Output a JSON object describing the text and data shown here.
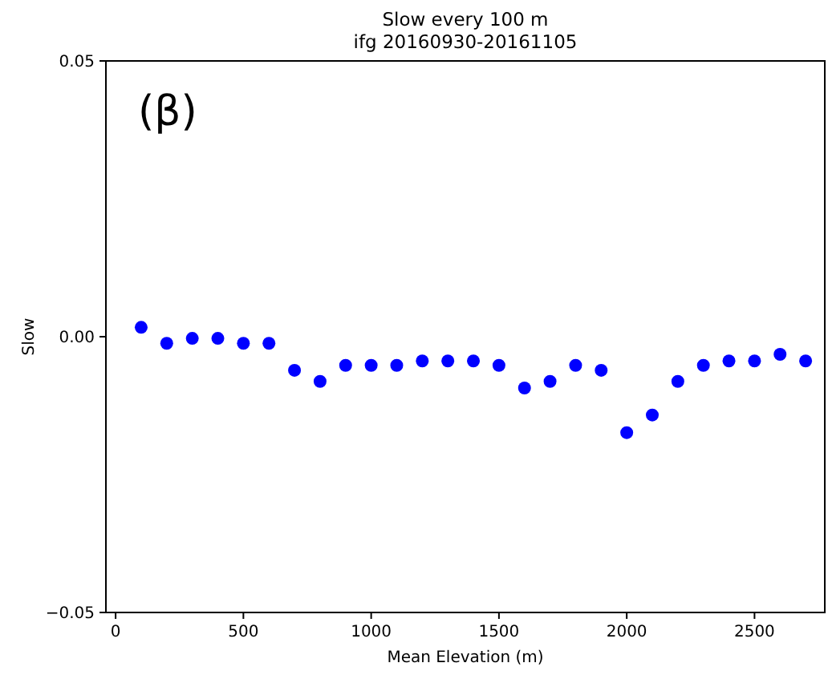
{
  "chart_data": {
    "type": "scatter",
    "title": "Slow every 100 m\nifg 20160930-20161105",
    "xlabel": "Mean Elevation (m)",
    "ylabel": "Slow",
    "annotations": [
      "(β)"
    ],
    "x": [
      100,
      200,
      300,
      400,
      500,
      600,
      700,
      800,
      900,
      1000,
      1100,
      1200,
      1300,
      1400,
      1500,
      1600,
      1700,
      1800,
      1900,
      2000,
      2100,
      2200,
      2300,
      2400,
      2500,
      2600,
      2700
    ],
    "series": [
      {
        "color": "#0000ff",
        "values": [
          0.0017,
          -0.0012,
          -0.0003,
          -0.0003,
          -0.0012,
          -0.0012,
          -0.0061,
          -0.0081,
          -0.0052,
          -0.0052,
          -0.0052,
          -0.0044,
          -0.0044,
          -0.0044,
          -0.0052,
          -0.0093,
          -0.0081,
          -0.0052,
          -0.0061,
          -0.0174,
          -0.0142,
          -0.0081,
          -0.0052,
          -0.0044,
          -0.0044,
          -0.0032,
          -0.0044
        ]
      }
    ],
    "xlim": [
      -38,
      2775
    ],
    "xticks": [
      0,
      500,
      1000,
      1500,
      2000,
      2500
    ],
    "ylim": [
      -0.05,
      0.05
    ],
    "yticks": [
      {
        "value": -0.05,
        "label": "−0.05"
      },
      {
        "value": 0,
        "label": "0.00"
      },
      {
        "value": 0.05,
        "label": "0.05"
      }
    ],
    "marker": "circle",
    "grid": false
  }
}
